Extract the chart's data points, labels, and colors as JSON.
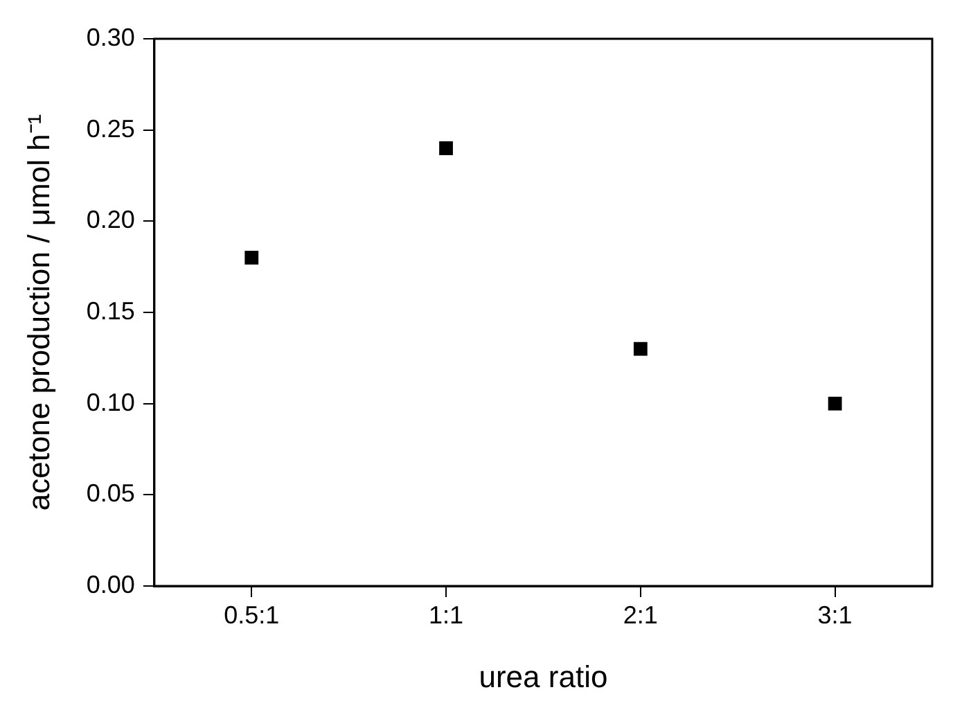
{
  "chart_data": {
    "type": "scatter",
    "xlabel": "urea ratio",
    "ylabel": "acetone production / μmol h⁻¹",
    "categories": [
      "0.5:1",
      "1:1",
      "2:1",
      "3:1"
    ],
    "series": [
      {
        "color": "#000000",
        "values": [
          0.18,
          0.24,
          0.13,
          0.1
        ]
      }
    ],
    "ylim": [
      0,
      0.3
    ],
    "yticks": [
      {
        "value": 0,
        "label": "0.00"
      },
      {
        "value": 0.05,
        "label": "0.05"
      },
      {
        "value": 0.1,
        "label": "0.10"
      },
      {
        "value": 0.15,
        "label": "0.15"
      },
      {
        "value": 0.2,
        "label": "0.20"
      },
      {
        "value": 0.25,
        "label": "0.25"
      },
      {
        "value": 0.3,
        "label": "0.30"
      }
    ],
    "marker": "square",
    "grid": false,
    "legend": false
  }
}
